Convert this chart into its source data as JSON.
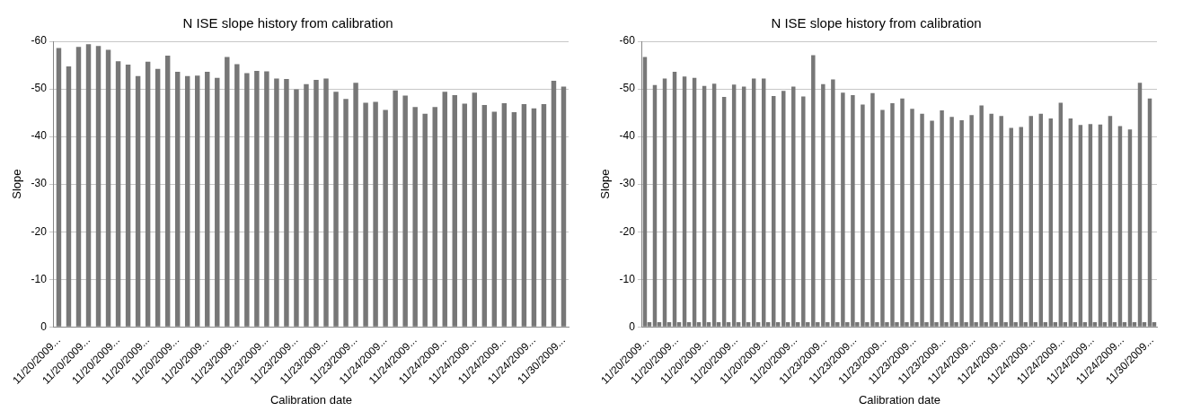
{
  "chart_data": [
    {
      "type": "bar",
      "title": "N ISE slope history from calibration",
      "xlabel": "Calibration date",
      "ylabel": "Slope",
      "categories": [
        "11/20/2009...",
        null,
        null,
        "11/20/2009...",
        null,
        null,
        "11/20/2009...",
        null,
        null,
        "11/20/2009...",
        null,
        null,
        "11/20/2009...",
        null,
        null,
        "11/20/2009...",
        null,
        null,
        "11/23/2009...",
        null,
        null,
        "11/23/2009...",
        null,
        null,
        "11/23/2009...",
        null,
        null,
        "11/23/2009...",
        null,
        null,
        "11/23/2009...",
        null,
        null,
        "11/24/2009...",
        null,
        null,
        "11/24/2009...",
        null,
        null,
        "11/24/2009...",
        null,
        null,
        "11/24/2009...",
        null,
        null,
        "11/24/2009...",
        null,
        null,
        "11/24/2009...",
        null,
        null,
        "11/30/2009..."
      ],
      "series": [
        {
          "color": "#777777",
          "values": [
            -58.6,
            -54.7,
            -58.8,
            -59.4,
            -59,
            -58.2,
            -55.8,
            -55.1,
            -52.7,
            -55.7,
            -54.2,
            -57,
            -53.6,
            -52.7,
            -52.8,
            -53.6,
            -52.3,
            -56.7,
            -55.2,
            -53.3,
            -53.8,
            -53.7,
            -52.2,
            -52.1,
            -49.9,
            -51,
            -51.9,
            -52.2,
            -49.4,
            -47.9,
            -51.3,
            -47.1,
            -47.3,
            -45.6,
            -49.7,
            -48.6,
            -46.2,
            -44.8,
            -46.2,
            -49.4,
            -48.7,
            -46.9,
            -49.2,
            -46.6,
            -45.2,
            -47,
            -45.1,
            -46.8,
            -45.9,
            -46.8,
            -51.7,
            -50.5
          ]
        }
      ],
      "ylim": [
        0,
        -60
      ],
      "yticks": [
        0,
        -10,
        -20,
        -30,
        -40,
        -50,
        -60
      ],
      "grid": "y"
    },
    {
      "type": "bar",
      "title": "N ISE slope history from calibration",
      "xlabel": "Calibration date",
      "ylabel": "Slope",
      "categories": [
        "11/20/2009...",
        null,
        null,
        "11/20/2009...",
        null,
        null,
        "11/20/2009...",
        null,
        null,
        "11/20/2009...",
        null,
        null,
        "11/20/2009...",
        null,
        null,
        "11/20/2009...",
        null,
        null,
        "11/23/2009...",
        null,
        null,
        "11/23/2009...",
        null,
        null,
        "11/23/2009...",
        null,
        null,
        "11/23/2009...",
        null,
        null,
        "11/23/2009...",
        null,
        null,
        "11/24/2009...",
        null,
        null,
        "11/24/2009...",
        null,
        null,
        "11/24/2009...",
        null,
        null,
        "11/24/2009...",
        null,
        null,
        "11/24/2009...",
        null,
        null,
        "11/24/2009...",
        null,
        null,
        "11/30/2009..."
      ],
      "series": [
        {
          "color": "#777777",
          "values": [
            -56.7,
            -50.8,
            -52.2,
            -53.6,
            -52.6,
            -52.3,
            -50.6,
            -51.1,
            -48.3,
            -50.9,
            -50.5,
            -52.2,
            -52.2,
            -48.5,
            -49.6,
            -50.5,
            -48.4,
            -57.1,
            -51,
            -52,
            -49.2,
            -48.7,
            -46.7,
            -49.1,
            -45.6,
            -47,
            -48,
            -45.8,
            -44.8,
            -43.3,
            -45.5,
            -44.1,
            -43.4,
            -44.5,
            -46.5,
            -44.8,
            -44.3,
            -41.8,
            -42,
            -44.3,
            -44.8,
            -43.8,
            -47.1,
            -43.8,
            -42.4,
            -42.6,
            -42.5,
            -44.3,
            -42.2,
            -41.5,
            -51.3,
            -48
          ]
        },
        {
          "color": "#777777",
          "values": [
            -1,
            -1,
            -1,
            -1,
            -1,
            -1,
            -1,
            -1,
            -1,
            -1,
            -1,
            -1,
            -1,
            -1,
            -1,
            -1,
            -1,
            -1,
            -1,
            -1,
            -1,
            -1,
            -1,
            -1,
            -1,
            -1,
            -1,
            -1,
            -1,
            -1,
            -1,
            -1,
            -1,
            -1,
            -1,
            -1,
            -1,
            -1,
            -1,
            -1,
            -1,
            -1,
            -1,
            -1,
            -1,
            -1,
            -1,
            -1,
            -1,
            -1,
            -1,
            -1
          ]
        }
      ],
      "ylim": [
        0,
        -60
      ],
      "yticks": [
        0,
        -10,
        -20,
        -30,
        -40,
        -50,
        -60
      ],
      "grid": "y"
    }
  ]
}
